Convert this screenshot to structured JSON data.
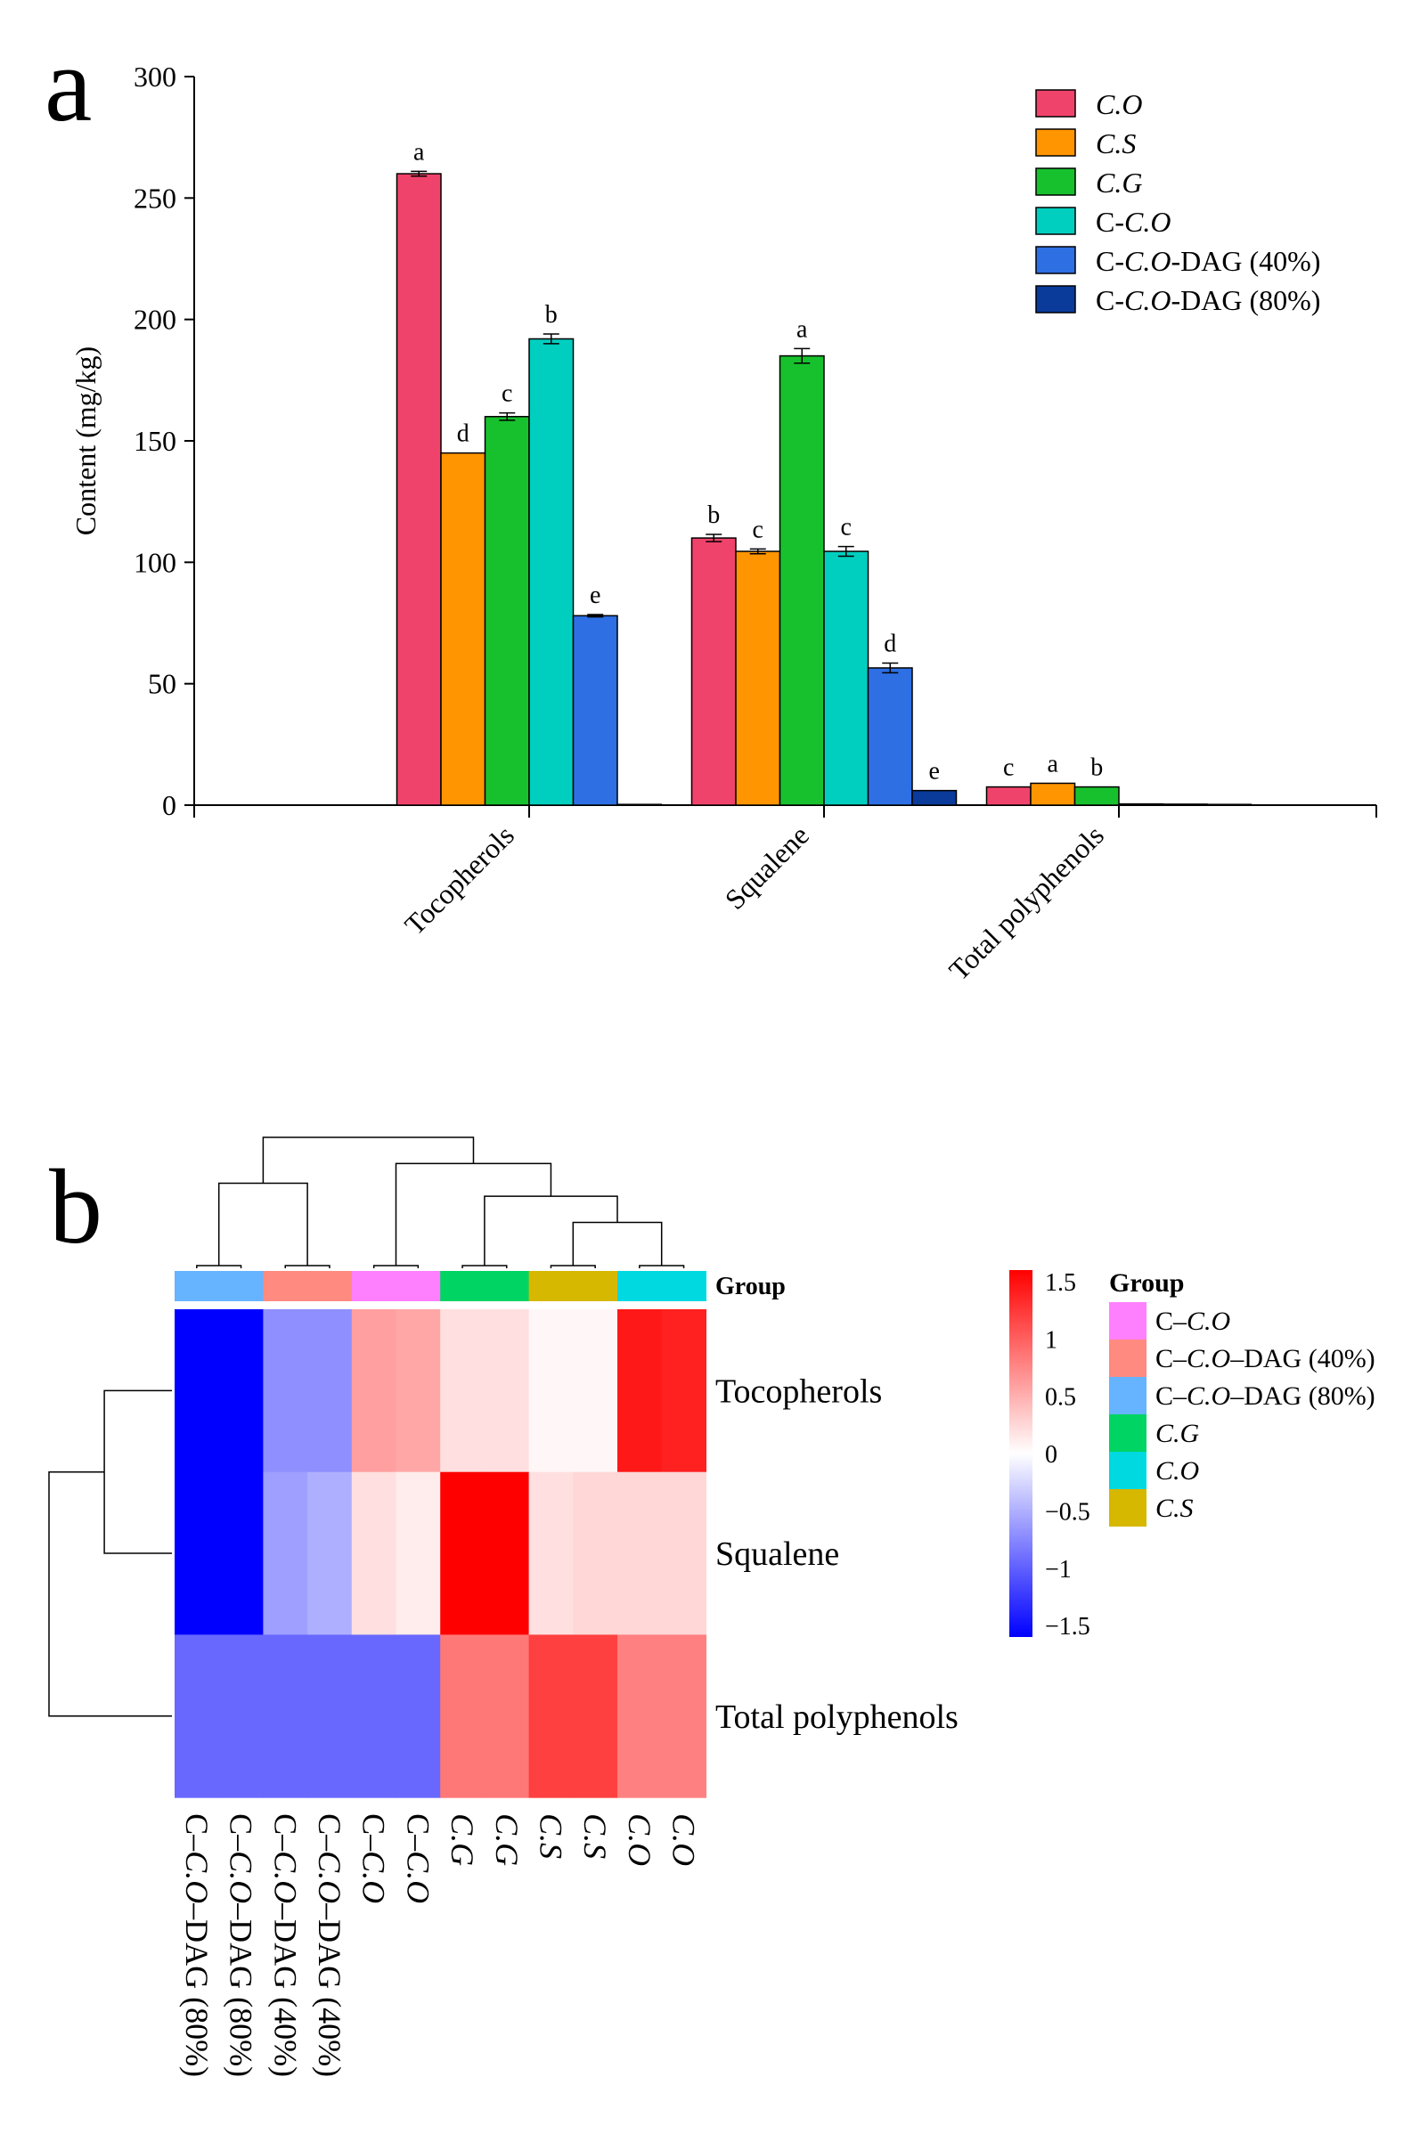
{
  "chart_data": [
    {
      "panel": "a",
      "type": "bar",
      "title": "",
      "xlabel": "",
      "ylabel": "Content (mg/kg)",
      "ylim": [
        0,
        300
      ],
      "yticks": [
        0,
        50,
        100,
        150,
        200,
        250,
        300
      ],
      "categories": [
        "Tocopherols",
        "Squalene",
        "Total polyphenols"
      ],
      "series": [
        {
          "name": "C.O",
          "legend": [
            {
              "t": "C.O",
              "i": true
            }
          ],
          "color": "#F0436B",
          "values": [
            260,
            110,
            7.5
          ],
          "errors": [
            1,
            1.5,
            0
          ],
          "labels": [
            "a",
            "b",
            "c"
          ]
        },
        {
          "name": "C.S",
          "legend": [
            {
              "t": "C.S",
              "i": true
            }
          ],
          "color": "#FF9500",
          "values": [
            145,
            104.5,
            9
          ],
          "errors": [
            0,
            1,
            0
          ],
          "labels": [
            "d",
            "c",
            "a"
          ]
        },
        {
          "name": "C.G",
          "legend": [
            {
              "t": "C.G",
              "i": true
            }
          ],
          "color": "#17C12D",
          "values": [
            160,
            185,
            7.5
          ],
          "errors": [
            1.5,
            3,
            0
          ],
          "labels": [
            "c",
            "a",
            "b"
          ]
        },
        {
          "name": "C-C.O",
          "legend": [
            {
              "t": "C-",
              "i": false
            },
            {
              "t": "C.O",
              "i": true
            }
          ],
          "color": "#00CFC0",
          "values": [
            192,
            104.5,
            0.5
          ],
          "errors": [
            2,
            2,
            0
          ],
          "labels": [
            "b",
            "c",
            ""
          ]
        },
        {
          "name": "C-C.O-DAG (40%)",
          "legend": [
            {
              "t": "C-",
              "i": false
            },
            {
              "t": "C.O",
              "i": true
            },
            {
              "t": "-DAG (40%)",
              "i": false
            }
          ],
          "color": "#2E6FE3",
          "values": [
            78,
            56.5,
            0.4
          ],
          "errors": [
            0.5,
            2,
            0
          ],
          "labels": [
            "e",
            "d",
            ""
          ]
        },
        {
          "name": "C-C.O-DAG (80%)",
          "legend": [
            {
              "t": "C-",
              "i": false
            },
            {
              "t": "C.O",
              "i": true
            },
            {
              "t": "-DAG (80%)",
              "i": false
            }
          ],
          "color": "#0A3B9B",
          "values": [
            0.3,
            6,
            0.3
          ],
          "errors": [
            0,
            0,
            0
          ],
          "labels": [
            "",
            "e",
            ""
          ]
        }
      ],
      "panel_label": "a"
    },
    {
      "panel": "b",
      "type": "heatmap",
      "panel_label": "b",
      "rows": [
        "Tocopherols",
        "Squalene",
        "Total polyphenols"
      ],
      "columns": [
        "C–C.O–DAG (80%)",
        "C–C.O–DAG (80%)",
        "C–C.O–DAG (40%)",
        "C–C.O–DAG (40%)",
        "C–C.O",
        "C–C.O",
        "C.G",
        "C.G",
        "C.S",
        "C.S",
        "C.O",
        "C.O"
      ],
      "column_labels": [
        [
          {
            "t": "C–",
            "i": false
          },
          {
            "t": "C.O",
            "i": true
          },
          {
            "t": "–DAG (80%)",
            "i": false
          }
        ],
        [
          {
            "t": "C–",
            "i": false
          },
          {
            "t": "C.O",
            "i": true
          },
          {
            "t": "–DAG (80%)",
            "i": false
          }
        ],
        [
          {
            "t": "C–",
            "i": false
          },
          {
            "t": "C.O",
            "i": true
          },
          {
            "t": "–DAG (40%)",
            "i": false
          }
        ],
        [
          {
            "t": "C–",
            "i": false
          },
          {
            "t": "C.O",
            "i": true
          },
          {
            "t": "–DAG (40%)",
            "i": false
          }
        ],
        [
          {
            "t": "C–",
            "i": false
          },
          {
            "t": "C.O",
            "i": true
          }
        ],
        [
          {
            "t": "C–",
            "i": false
          },
          {
            "t": "C.O",
            "i": true
          }
        ],
        [
          {
            "t": "C.G",
            "i": true
          }
        ],
        [
          {
            "t": "C.G",
            "i": true
          }
        ],
        [
          {
            "t": "C.S",
            "i": true
          }
        ],
        [
          {
            "t": "C.S",
            "i": true
          }
        ],
        [
          {
            "t": "C.O",
            "i": true
          }
        ],
        [
          {
            "t": "C.O",
            "i": true
          }
        ]
      ],
      "column_groups": [
        "C–C.O–DAG (80%)",
        "C–C.O–DAG (80%)",
        "C–C.O–DAG (40%)",
        "C–C.O–DAG (40%)",
        "C–C.O",
        "C–C.O",
        "C.G",
        "C.G",
        "C.S",
        "C.S",
        "C.O",
        "C.O"
      ],
      "values": [
        [
          -1.6,
          -1.6,
          -0.7,
          -0.7,
          0.6,
          0.55,
          0.2,
          0.2,
          0.05,
          0.05,
          1.45,
          1.4
        ],
        [
          -1.6,
          -1.6,
          -0.6,
          -0.5,
          0.2,
          0.12,
          1.6,
          1.6,
          0.2,
          0.25,
          0.25,
          0.25
        ],
        [
          -0.95,
          -0.95,
          -0.95,
          -0.95,
          -0.95,
          -0.95,
          0.85,
          0.85,
          1.2,
          1.2,
          0.8,
          0.8
        ]
      ],
      "group_track_label": "Group",
      "legend_title": "Group",
      "groups": [
        {
          "name": "C–C.O",
          "legend": [
            {
              "t": "C–",
              "i": false
            },
            {
              "t": "C.O",
              "i": true
            }
          ],
          "color": "#FF80FF"
        },
        {
          "name": "C–C.O–DAG (40%)",
          "legend": [
            {
              "t": "C–",
              "i": false
            },
            {
              "t": "C.O",
              "i": true
            },
            {
              "t": "–DAG (40%)",
              "i": false
            }
          ],
          "color": "#FF8A80"
        },
        {
          "name": "C–C.O–DAG (80%)",
          "legend": [
            {
              "t": "C–",
              "i": false
            },
            {
              "t": "C.O",
              "i": true
            },
            {
              "t": "–DAG (80%)",
              "i": false
            }
          ],
          "color": "#66B3FF"
        },
        {
          "name": "C.G",
          "legend": [
            {
              "t": "C.G",
              "i": true
            }
          ],
          "color": "#00D463"
        },
        {
          "name": "C.O",
          "legend": [
            {
              "t": "C.O",
              "i": true
            }
          ],
          "color": "#00D9E0"
        },
        {
          "name": "C.S",
          "legend": [
            {
              "t": "C.S",
              "i": true
            }
          ],
          "color": "#D6B800"
        }
      ],
      "colorbar": {
        "ticks": [
          1.5,
          1,
          0.5,
          0,
          -0.5,
          -1,
          -1.5
        ],
        "tick_labels": [
          "1.5",
          "1",
          "0.5",
          "0",
          "−0.5",
          "−1",
          "−1.5"
        ],
        "range": [
          -1.6,
          1.6
        ],
        "colors": [
          "#0000FF",
          "#FFFFFF",
          "#FF0000"
        ]
      },
      "column_dendrogram": [
        [
          0,
          1,
          0.02
        ],
        [
          2,
          3,
          0.02
        ],
        [
          4,
          5,
          0.02
        ],
        [
          6,
          7,
          0.02
        ],
        [
          8,
          9,
          0.02
        ],
        [
          10,
          11,
          0.02
        ],
        [
          16,
          17,
          0.35
        ],
        [
          15,
          18,
          0.55
        ],
        [
          14,
          19,
          0.8
        ],
        [
          12,
          13,
          0.65
        ],
        [
          21,
          20,
          1.0
        ]
      ],
      "row_dendrogram": [
        [
          0,
          1,
          0.55
        ],
        [
          3,
          2,
          1.0
        ]
      ]
    }
  ]
}
